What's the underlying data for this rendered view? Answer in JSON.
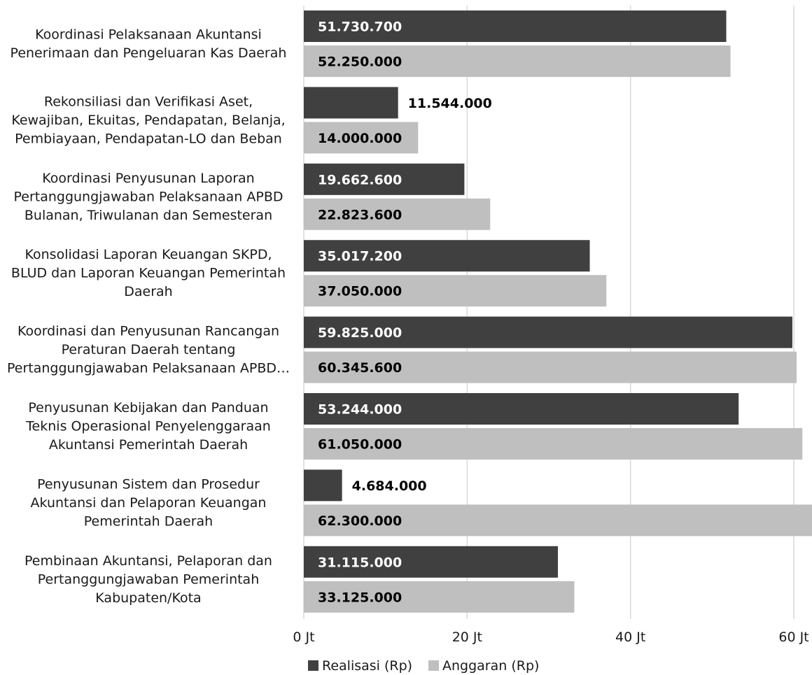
{
  "chart_data": {
    "type": "bar",
    "orientation": "horizontal",
    "categories": [
      [
        "Koordinasi Pelaksanaan Akuntansi",
        "Penerimaan dan Pengeluaran Kas Daerah"
      ],
      [
        "Rekonsiliasi dan Verifikasi Aset,",
        "Kewajiban, Ekuitas, Pendapatan, Belanja,",
        "Pembiayaan, Pendapatan-LO dan Beban"
      ],
      [
        "Koordinasi Penyusunan Laporan",
        "Pertanggungjawaban Pelaksanaan APBD",
        "Bulanan, Triwulanan dan Semesteran"
      ],
      [
        "Konsolidasi Laporan Keuangan SKPD,",
        "BLUD dan Laporan Keuangan Pemerintah",
        "Daerah"
      ],
      [
        "Koordinasi dan Penyusunan Rancangan",
        "Peraturan Daerah tentang",
        "Pertanggungjawaban Pelaksanaan APBD…"
      ],
      [
        "Penyusunan Kebijakan dan Panduan",
        "Teknis Operasional Penyelenggaraan",
        "Akuntansi Pemerintah Daerah"
      ],
      [
        "Penyusunan Sistem dan Prosedur",
        "Akuntansi dan Pelaporan Keuangan",
        "Pemerintah Daerah"
      ],
      [
        "Pembinaan Akuntansi, Pelaporan dan",
        "Pertanggungjawaban Pemerintah",
        "Kabupaten/Kota"
      ]
    ],
    "series": [
      {
        "name": "Realisasi (Rp)",
        "color": "#404040",
        "values": [
          51730700,
          11544000,
          19662600,
          35017200,
          59825000,
          53244000,
          4684000,
          31115000
        ],
        "labels": [
          "51.730.700",
          "11.544.000",
          "19.662.600",
          "35.017.200",
          "59.825.000",
          "53.244.000",
          "4.684.000",
          "31.115.000"
        ]
      },
      {
        "name": "Anggaran (Rp)",
        "color": "#bfbfbf",
        "values": [
          52250000,
          14000000,
          22823600,
          37050000,
          60345600,
          61050000,
          62300000,
          33125000
        ],
        "labels": [
          "52.250.000",
          "14.000.000",
          "22.823.600",
          "37.050.000",
          "60.345.600",
          "61.050.000",
          "62.300.000",
          "33.125.000"
        ]
      }
    ],
    "xlim": [
      0,
      62300000
    ],
    "xticks": [
      0,
      20000000,
      40000000,
      60000000
    ],
    "xtick_labels": [
      "0 Jt",
      "20 Jt",
      "40 Jt",
      "60 Jt"
    ],
    "grid": true,
    "legend": "bottom",
    "title": "",
    "xlabel": "",
    "ylabel": ""
  }
}
